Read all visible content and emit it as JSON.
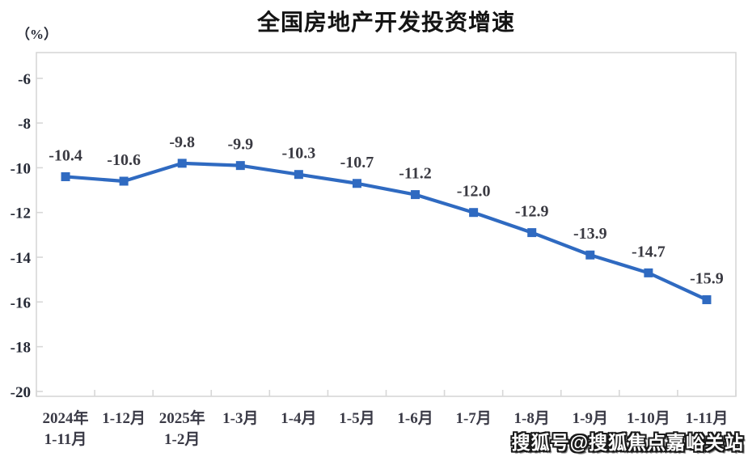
{
  "chart": {
    "title": "全国房地产开发投资增速",
    "unit_label": "（%）",
    "colors": {
      "line": "#2f6ac1",
      "marker": "#2f6ac1",
      "axis": "#d7d7d7",
      "title_text": "#141414",
      "y_tick_text": "#262a36",
      "x_tick_text": "#3a3a46",
      "data_label_text": "#3a3a42",
      "watermark_text": "#ffffff",
      "watermark_outline": "#1a1a1a"
    }
  },
  "chart_data": {
    "type": "line",
    "title": "全国房地产开发投资增速",
    "ylabel": "（%）",
    "xlabel": "",
    "categories": [
      [
        "2024年",
        "1-11月"
      ],
      [
        "1-12月"
      ],
      [
        "2025年",
        "1-2月"
      ],
      [
        "1-3月"
      ],
      [
        "1-4月"
      ],
      [
        "1-5月"
      ],
      [
        "1-6月"
      ],
      [
        "1-7月"
      ],
      [
        "1-8月"
      ],
      [
        "1-9月"
      ],
      [
        "1-10月"
      ],
      [
        "1-11月"
      ]
    ],
    "values": [
      -10.4,
      -10.6,
      -9.8,
      -9.9,
      -10.3,
      -10.7,
      -11.2,
      -12.0,
      -12.9,
      -13.9,
      -14.7,
      -15.9
    ],
    "data_labels": [
      "-10.4",
      "-10.6",
      "-9.8",
      "-9.9",
      "-10.3",
      "-10.7",
      "-11.2",
      "-12.0",
      "-12.9",
      "-13.9",
      "-14.7",
      "-15.9"
    ],
    "y_ticks": [
      -6,
      -8,
      -10,
      -12,
      -14,
      -16,
      -18,
      -20
    ],
    "ylim": [
      -20.22,
      -4.85
    ],
    "grid": false,
    "legend": null,
    "marker": "square"
  },
  "watermark": {
    "text": "搜狐号@搜狐焦点嘉峪关站"
  }
}
